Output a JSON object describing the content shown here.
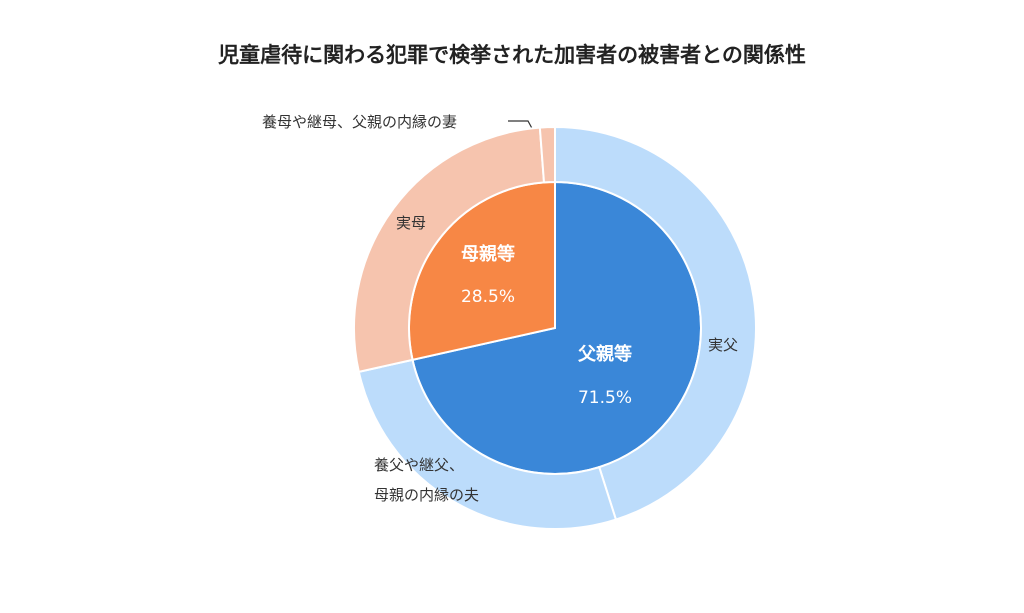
{
  "chart_data": {
    "type": "nested-pie",
    "title": "児童虐待に関わる犯罪で検挙された加害者の被害者との関係性",
    "rings": [
      {
        "categories": [
          "父親等",
          "母親等"
        ],
        "values": [
          71.5,
          28.5
        ],
        "value_labels": [
          "71.5%",
          "28.5%"
        ],
        "colors": [
          "#3a87d8",
          "#f78745"
        ]
      },
      {
        "categories": [
          "実父",
          "養父や継父、\n母親の内縁の夫",
          "実母",
          "養母や継母、父親の内縁の妻"
        ],
        "values": [
          45.1,
          26.4,
          27.3,
          1.2
        ],
        "colors": [
          "#bcdcfb",
          "#bcdcfb",
          "#f6c4ae",
          "#f6c4ae"
        ]
      }
    ]
  }
}
